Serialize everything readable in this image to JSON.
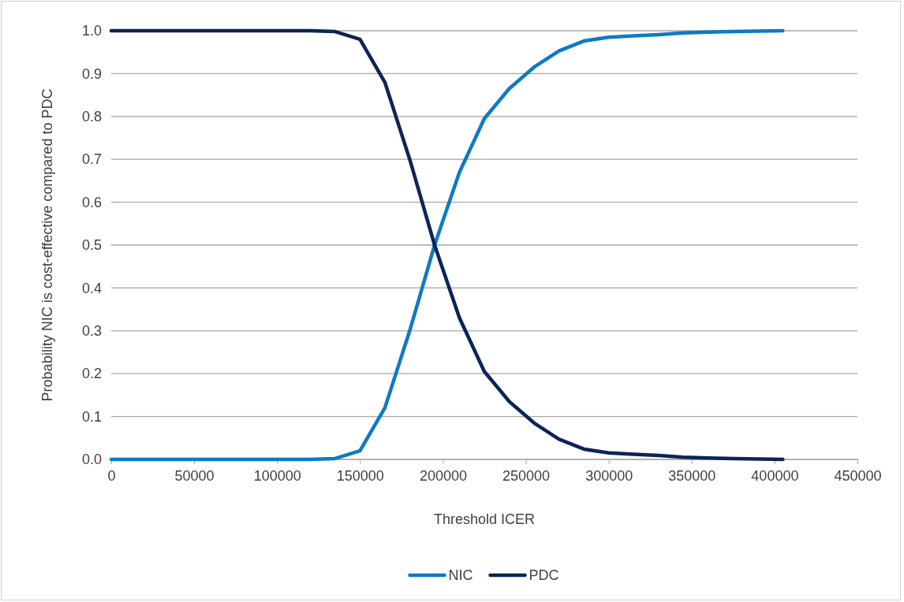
{
  "chart_data": {
    "type": "line",
    "xlabel": "Threshold ICER",
    "ylabel": "Probability NIC is cost-effective compared to PDC",
    "x": [
      0,
      15000,
      30000,
      45000,
      60000,
      75000,
      90000,
      105000,
      120000,
      135000,
      150000,
      165000,
      180000,
      195000,
      210000,
      225000,
      240000,
      255000,
      270000,
      285000,
      300000,
      315000,
      330000,
      345000,
      360000,
      375000,
      390000,
      405000
    ],
    "series": [
      {
        "name": "NIC",
        "color": "#0e7ac4",
        "values": [
          0,
          0,
          0,
          0,
          0,
          0,
          0,
          0,
          0,
          0.002,
          0.02,
          0.12,
          0.3,
          0.5,
          0.67,
          0.795,
          0.865,
          0.915,
          0.953,
          0.976,
          0.985,
          0.988,
          0.991,
          0.995,
          0.997,
          0.998,
          0.999,
          1.0
        ]
      },
      {
        "name": "PDC",
        "color": "#0c2456",
        "values": [
          1.0,
          1.0,
          1.0,
          1.0,
          1.0,
          1.0,
          1.0,
          1.0,
          1.0,
          0.998,
          0.98,
          0.88,
          0.7,
          0.5,
          0.33,
          0.205,
          0.135,
          0.085,
          0.047,
          0.024,
          0.015,
          0.012,
          0.009,
          0.005,
          0.003,
          0.002,
          0.001,
          0
        ]
      }
    ],
    "xlim": [
      0,
      450000
    ],
    "xticks": [
      0,
      50000,
      100000,
      150000,
      200000,
      250000,
      300000,
      350000,
      400000,
      450000
    ],
    "ylim": [
      0,
      1
    ],
    "yticks": [
      {
        "value": 0,
        "label": "0.0"
      },
      {
        "value": 0.1,
        "label": "0.1"
      },
      {
        "value": 0.2,
        "label": "0.2"
      },
      {
        "value": 0.3,
        "label": "0.3"
      },
      {
        "value": 0.4,
        "label": "0.4"
      },
      {
        "value": 0.5,
        "label": "0.5"
      },
      {
        "value": 0.6,
        "label": "0.6"
      },
      {
        "value": 0.7,
        "label": "0.7"
      },
      {
        "value": 0.8,
        "label": "0.8"
      },
      {
        "value": 0.9,
        "label": "0.9"
      },
      {
        "value": 1,
        "label": "1.0"
      }
    ],
    "grid": "y",
    "legend": "bottom",
    "marker": "none",
    "line_style": "solid"
  }
}
